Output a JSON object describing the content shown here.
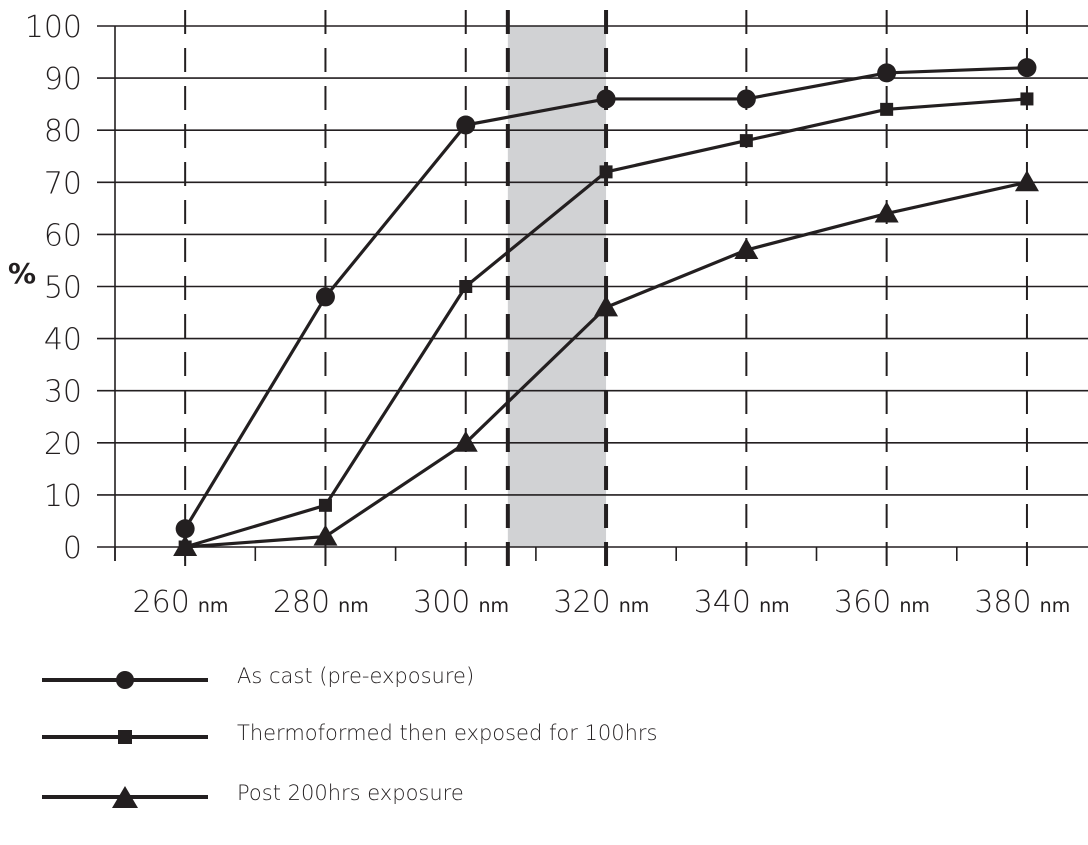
{
  "chart_data": {
    "type": "line",
    "title": "",
    "ylabel": "%",
    "xlabel": "",
    "x": [
      260,
      280,
      300,
      320,
      340,
      360,
      380
    ],
    "x_tick_labels": [
      "260",
      "280",
      "300",
      "320",
      "340",
      "360",
      "380"
    ],
    "x_unit": "nm",
    "xlim": [
      250,
      385
    ],
    "y_ticks": [
      0,
      10,
      20,
      30,
      40,
      50,
      60,
      70,
      80,
      90,
      100
    ],
    "ylim": [
      0,
      100
    ],
    "grid": true,
    "highlight_band": {
      "x_range": [
        306,
        320
      ],
      "color": "#d1d2d4"
    },
    "legend_position": "bottom",
    "series": [
      {
        "name": "As cast (pre-exposure)",
        "marker": "circle",
        "values": [
          3.5,
          48,
          81,
          86,
          86,
          91,
          92
        ]
      },
      {
        "name": "Thermoformed then exposed for 100hrs",
        "marker": "square",
        "values": [
          0,
          8,
          50,
          72,
          78,
          84,
          86
        ]
      },
      {
        "name": "Post 200hrs exposure",
        "marker": "triangle",
        "values": [
          0,
          2,
          20,
          46,
          57,
          64,
          70
        ]
      }
    ],
    "colors": {
      "line": "#231f20",
      "grid": "#231f20",
      "band": "#d1d2d4"
    }
  }
}
